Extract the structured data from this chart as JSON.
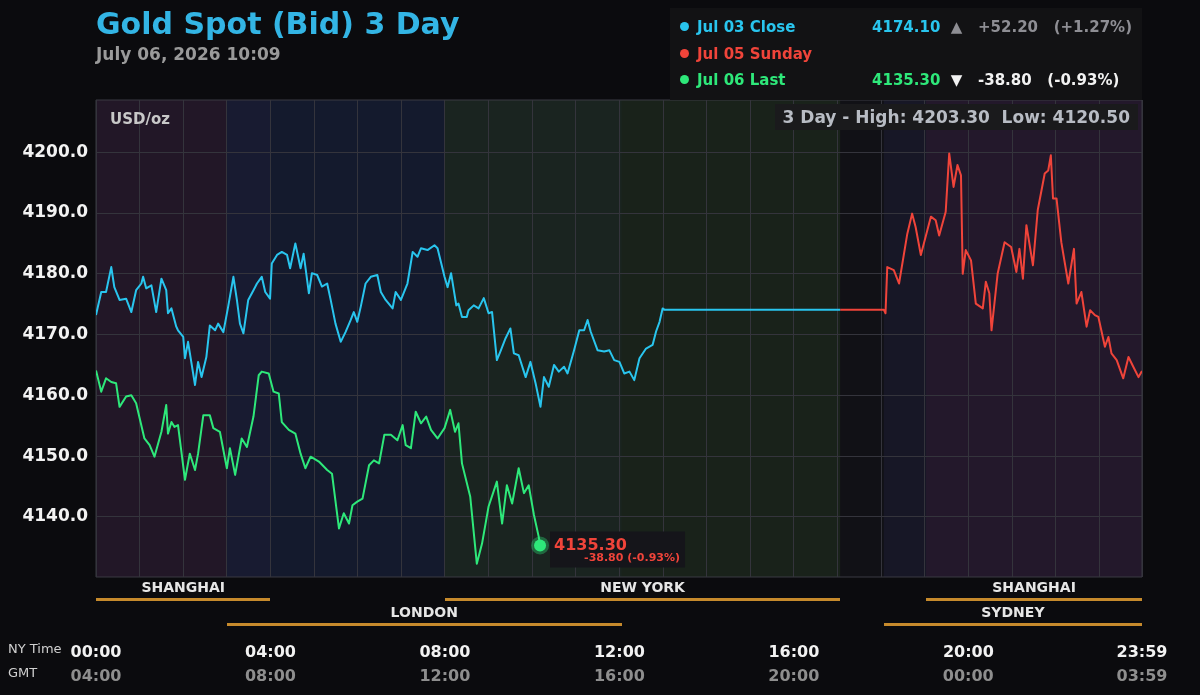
{
  "chart_data": {
    "type": "line",
    "title": "Gold Spot (Bid) 3 Day",
    "subtitle": "July 06, 2026 10:09",
    "ylabel": "USD/oz",
    "xlabel": "NY Time",
    "x2label": "GMT",
    "xlim": [
      0,
      23.98
    ],
    "xticks": [
      {
        "value": 0,
        "label": "00:00"
      },
      {
        "value": 1,
        "label": null
      },
      {
        "value": 2,
        "label": null
      },
      {
        "value": 3,
        "label": null
      },
      {
        "value": 4,
        "label": "04:00"
      },
      {
        "value": 5,
        "label": null
      },
      {
        "value": 6,
        "label": null
      },
      {
        "value": 7,
        "label": null
      },
      {
        "value": 8,
        "label": "08:00"
      },
      {
        "value": 9,
        "label": null
      },
      {
        "value": 10,
        "label": null
      },
      {
        "value": 11,
        "label": null
      },
      {
        "value": 12,
        "label": "12:00"
      },
      {
        "value": 13,
        "label": null
      },
      {
        "value": 14,
        "label": null
      },
      {
        "value": 15,
        "label": null
      },
      {
        "value": 16,
        "label": "16:00"
      },
      {
        "value": 17,
        "label": null
      },
      {
        "value": 18,
        "label": null
      },
      {
        "value": 19,
        "label": null
      },
      {
        "value": 20,
        "label": "20:00"
      },
      {
        "value": 21,
        "label": null
      },
      {
        "value": 22,
        "label": null
      },
      {
        "value": 23,
        "label": null
      },
      {
        "value": 23.98,
        "label": "23:59"
      }
    ],
    "x2lim": [
      "2026-07-06T04:00",
      "2026-07-07T03:59"
    ],
    "x2ticks": [
      {
        "value": "2026-07-06T04:00",
        "label": "04:00"
      },
      {
        "value": "2026-07-06T08:00",
        "label": "08:00"
      },
      {
        "value": "2026-07-06T12:00",
        "label": "12:00"
      },
      {
        "value": "2026-07-06T16:00",
        "label": "16:00"
      },
      {
        "value": "2026-07-06T20:00",
        "label": "20:00"
      },
      {
        "value": "2026-07-07T00:00",
        "label": "00:00"
      },
      {
        "value": "2026-07-07T03:59",
        "label": "03:59"
      }
    ],
    "ylim": [
      4130.1,
      4208.6
    ],
    "yticks": [
      {
        "value": 4140,
        "label": "4140.0"
      },
      {
        "value": 4150,
        "label": "4150.0"
      },
      {
        "value": 4160,
        "label": "4160.0"
      },
      {
        "value": 4170,
        "label": "4170.0"
      },
      {
        "value": 4180,
        "label": "4180.0"
      },
      {
        "value": 4190,
        "label": "4190.0"
      },
      {
        "value": 4200,
        "label": "4200.0"
      }
    ],
    "grid": true,
    "legend": "top right",
    "marker": "none",
    "line_style": "solid",
    "series": [
      {
        "name": "Jul 03 Close",
        "color": "#29c5ee",
        "x": [
          0,
          0.12,
          0.23,
          0.35,
          0.42,
          0.54,
          0.69,
          0.81,
          0.92,
          1.04,
          1.08,
          1.15,
          1.27,
          1.38,
          1.5,
          1.61,
          1.65,
          1.73,
          1.84,
          1.88,
          2,
          2.04,
          2.11,
          2.27,
          2.34,
          2.42,
          2.53,
          2.61,
          2.73,
          2.8,
          2.92,
          3.03,
          3.15,
          3.23,
          3.3,
          3.38,
          3.49,
          3.61,
          3.69,
          3.8,
          3.88,
          3.99,
          4.03,
          4.15,
          4.26,
          4.38,
          4.45,
          4.57,
          4.69,
          4.76,
          4.88,
          4.95,
          5.07,
          5.18,
          5.3,
          5.38,
          5.49,
          5.61,
          5.72,
          5.84,
          5.91,
          5.99,
          6.07,
          6.18,
          6.3,
          6.45,
          6.53,
          6.64,
          6.8,
          6.87,
          6.99,
          7.14,
          7.26,
          7.37,
          7.45,
          7.6,
          7.76,
          7.83,
          7.99,
          8.06,
          8.14,
          8.26,
          8.31,
          8.39,
          8.5,
          8.54,
          8.66,
          8.77,
          8.89,
          9,
          9.08,
          9.19,
          9.27,
          9.39,
          9.5,
          9.58,
          9.69,
          9.85,
          9.96,
          10.08,
          10.19,
          10.27,
          10.38,
          10.5,
          10.61,
          10.73,
          10.81,
          10.96,
          11.08,
          11.19,
          11.27,
          11.34,
          11.5,
          11.65,
          11.77,
          11.88,
          12,
          12.11,
          12.23,
          12.34,
          12.46,
          12.61,
          12.76,
          12.84,
          12.92,
          12.99,
          13.03,
          17.06
        ],
        "values": [
          4173.2,
          4177,
          4177,
          4181.1,
          4177.8,
          4175.7,
          4175.9,
          4173.7,
          4177.3,
          4178.4,
          4179.5,
          4177.6,
          4178.1,
          4173.7,
          4179.2,
          4177.3,
          4173.5,
          4174.3,
          4171.3,
          4170.7,
          4169.6,
          4166.1,
          4168.8,
          4161.7,
          4165.5,
          4163,
          4166.3,
          4171.5,
          4170.7,
          4171.8,
          4170.4,
          4174.6,
          4179.5,
          4175.7,
          4171.8,
          4170.2,
          4175.7,
          4177.3,
          4178.4,
          4179.5,
          4177,
          4175.9,
          4181.7,
          4183.1,
          4183.6,
          4183.1,
          4180.9,
          4185,
          4180.9,
          4183.3,
          4176.8,
          4180.1,
          4179.8,
          4177.9,
          4178.4,
          4175.7,
          4171.8,
          4168.8,
          4170.4,
          4172.4,
          4173.7,
          4172.1,
          4174.6,
          4178.4,
          4179.5,
          4179.8,
          4177,
          4175.7,
          4174.3,
          4177,
          4175.7,
          4178.4,
          4183.6,
          4182.8,
          4184.2,
          4183.9,
          4184.7,
          4184.2,
          4179.5,
          4177.8,
          4180.1,
          4174.8,
          4175.1,
          4172.9,
          4172.9,
          4174,
          4174.8,
          4174.3,
          4176,
          4173.5,
          4173.7,
          4165.8,
          4167.2,
          4169.4,
          4171,
          4166.9,
          4166.6,
          4163,
          4165.5,
          4161.9,
          4158.1,
          4163,
          4161.4,
          4165,
          4163.9,
          4164.7,
          4163.6,
          4167.4,
          4170.7,
          4170.7,
          4172.4,
          4170.5,
          4167.4,
          4167.2,
          4167.4,
          4165.8,
          4165.5,
          4163.6,
          4163.9,
          4162.5,
          4166.1,
          4167.7,
          4168.3,
          4170.5,
          4172.1,
          4174.3,
          4174.1,
          4174.1
        ]
      },
      {
        "name": "Jul 05 Sunday",
        "color": "#f0443a",
        "x": [
          17.06,
          18.06,
          18.1,
          18.14,
          18.29,
          18.41,
          18.6,
          18.71,
          18.79,
          18.91,
          19.14,
          19.25,
          19.33,
          19.48,
          19.56,
          19.66,
          19.75,
          19.83,
          19.87,
          19.94,
          20.06,
          20.17,
          20.33,
          20.4,
          20.48,
          20.53,
          20.67,
          20.83,
          20.98,
          21.1,
          21.17,
          21.25,
          21.33,
          21.48,
          21.59,
          21.75,
          21.83,
          21.89,
          21.94,
          22.02,
          22.13,
          22.29,
          22.42,
          22.48,
          22.59,
          22.71,
          22.79,
          22.9,
          22.98,
          23.13,
          23.21,
          23.28,
          23.4,
          23.55,
          23.67,
          23.78,
          23.9,
          23.98
        ],
        "values": [
          4174.1,
          4174.1,
          4173.5,
          4181.1,
          4180.6,
          4178.4,
          4186.6,
          4189.9,
          4187.7,
          4183.1,
          4189.4,
          4188.8,
          4186.3,
          4190.2,
          4199.8,
          4194.3,
          4197.9,
          4196.2,
          4180,
          4183.9,
          4182.2,
          4175.1,
          4174.3,
          4178.7,
          4176.8,
          4170.7,
          4180,
          4185.2,
          4184.4,
          4180.3,
          4184.1,
          4179.2,
          4188,
          4181.4,
          4190.5,
          4196.5,
          4197,
          4199.5,
          4192.4,
          4192.4,
          4185.2,
          4178.4,
          4184.1,
          4175.1,
          4177,
          4171.3,
          4174,
          4173.2,
          4172.9,
          4168,
          4169.6,
          4166.9,
          4165.8,
          4162.8,
          4166.3,
          4164.7,
          4163,
          4164
        ]
      },
      {
        "name": "Jul 06 Last",
        "color": "#2ee87a",
        "x": [
          0,
          0.12,
          0.23,
          0.35,
          0.46,
          0.54,
          0.69,
          0.81,
          0.92,
          1.11,
          1.23,
          1.34,
          1.5,
          1.61,
          1.65,
          1.73,
          1.8,
          1.88,
          2.04,
          2.15,
          2.27,
          2.34,
          2.46,
          2.61,
          2.69,
          2.84,
          3,
          3.07,
          3.19,
          3.34,
          3.46,
          3.61,
          3.73,
          3.8,
          3.96,
          4.07,
          4.19,
          4.26,
          4.42,
          4.57,
          4.69,
          4.8,
          4.92,
          5.11,
          5.3,
          5.41,
          5.57,
          5.68,
          5.8,
          5.88,
          5.99,
          6.11,
          6.26,
          6.37,
          6.49,
          6.61,
          6.76,
          6.91,
          7.03,
          7.1,
          7.22,
          7.33,
          7.45,
          7.57,
          7.68,
          7.83,
          7.99,
          8.12,
          8.23,
          8.31,
          8.39,
          8.58,
          8.73,
          8.85,
          9,
          9.19,
          9.31,
          9.42,
          9.54,
          9.69,
          9.81,
          9.92,
          10.04,
          10.15,
          10.18
        ],
        "values": [
          4164.1,
          4160.6,
          4162.8,
          4162.2,
          4162,
          4158.1,
          4159.8,
          4160,
          4158.7,
          4152.9,
          4151.8,
          4149.9,
          4154,
          4158.4,
          4153.7,
          4155.6,
          4154.8,
          4155.1,
          4146.1,
          4150.4,
          4147.7,
          4150.4,
          4156.7,
          4156.7,
          4154.6,
          4154,
          4148,
          4151.3,
          4146.9,
          4152.9,
          4151.5,
          4156.5,
          4163.3,
          4163.9,
          4163.6,
          4160.6,
          4160.3,
          4155.6,
          4154.3,
          4153.7,
          4150.4,
          4148,
          4149.9,
          4149.1,
          4147.7,
          4147.1,
          4138.1,
          4140.6,
          4138.9,
          4141.9,
          4142.5,
          4143,
          4148.5,
          4149.3,
          4148.8,
          4153.5,
          4153.5,
          4152.6,
          4155.1,
          4151.8,
          4151.3,
          4157.3,
          4155.4,
          4156.5,
          4154.3,
          4152.9,
          4154.6,
          4157.6,
          4154,
          4155.4,
          4148.8,
          4143.3,
          4132.3,
          4135.6,
          4141.7,
          4145.8,
          4138.9,
          4145.2,
          4142.2,
          4148,
          4143.9,
          4145.2,
          4140.3,
          4136.7,
          4135.3
        ]
      }
    ],
    "bands": [
      {
        "axis": "x",
        "from": 0,
        "to": 4,
        "label": "SHANGHAI",
        "color": "#281a2e"
      },
      {
        "axis": "x",
        "from": 3,
        "to": 12.05,
        "label": "LONDON",
        "color": "#161e36"
      },
      {
        "axis": "x",
        "from": 8,
        "to": 17.06,
        "label": "NEW YORK",
        "color": "#1c281c"
      },
      {
        "axis": "x",
        "from": 19.03,
        "to": 23.98,
        "label": "SHANGHAI",
        "color": "#281a2e"
      },
      {
        "axis": "x",
        "from": 18.06,
        "to": 23.98,
        "label": "SYDNEY",
        "color": "#1a1a2c"
      }
    ],
    "annotations": [
      "3 Day - High: 4203.30  Low: 4120.50",
      "4174.10 ▲ +52.20 (+1.27%)",
      "4135.30 ▼ -38.80 (-0.93%)",
      "-38.80 (-0.93%)",
      {
        "text": "4135.30",
        "x": 10.18,
        "y": 4135.3
      }
    ]
  }
}
